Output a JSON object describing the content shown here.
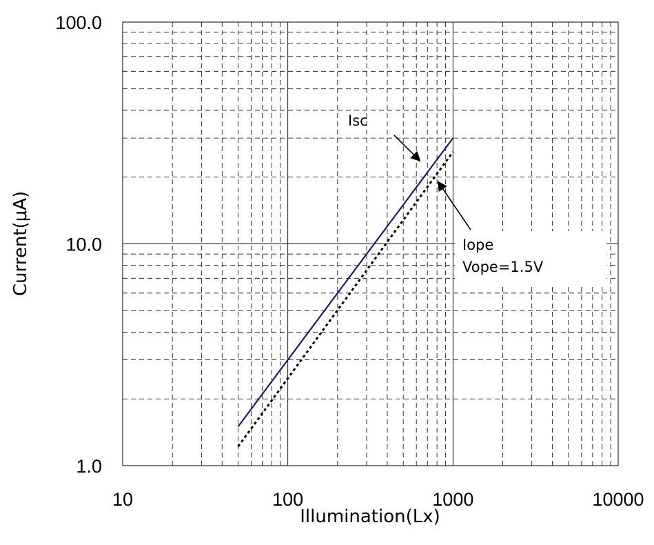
{
  "chart_data": {
    "type": "line",
    "xscale": "log",
    "yscale": "log",
    "xlim": [
      10,
      10000
    ],
    "ylim": [
      1.0,
      100.0
    ],
    "xlabel": "Illumination(Lx)",
    "ylabel": "Current(μA)",
    "xticks": [
      "10",
      "100",
      "1000",
      "10000"
    ],
    "yticks": [
      "1.0",
      "10.0",
      "100.0"
    ],
    "grid": true,
    "series": [
      {
        "name": "Isc",
        "style": "solid",
        "color": "#1a1a6e",
        "x": [
          50,
          1000
        ],
        "y": [
          1.5,
          30
        ]
      },
      {
        "name": "Iope",
        "style": "dotted",
        "color": "#000000",
        "x": [
          50,
          1000
        ],
        "y": [
          1.22,
          26
        ]
      }
    ],
    "annotations": [
      {
        "text": "Isc",
        "target_x": 650,
        "target_y": 23
      },
      {
        "text": "Iope",
        "subtext": "Vope=1.5V",
        "target_x": 780,
        "target_y": 19.5
      }
    ]
  }
}
